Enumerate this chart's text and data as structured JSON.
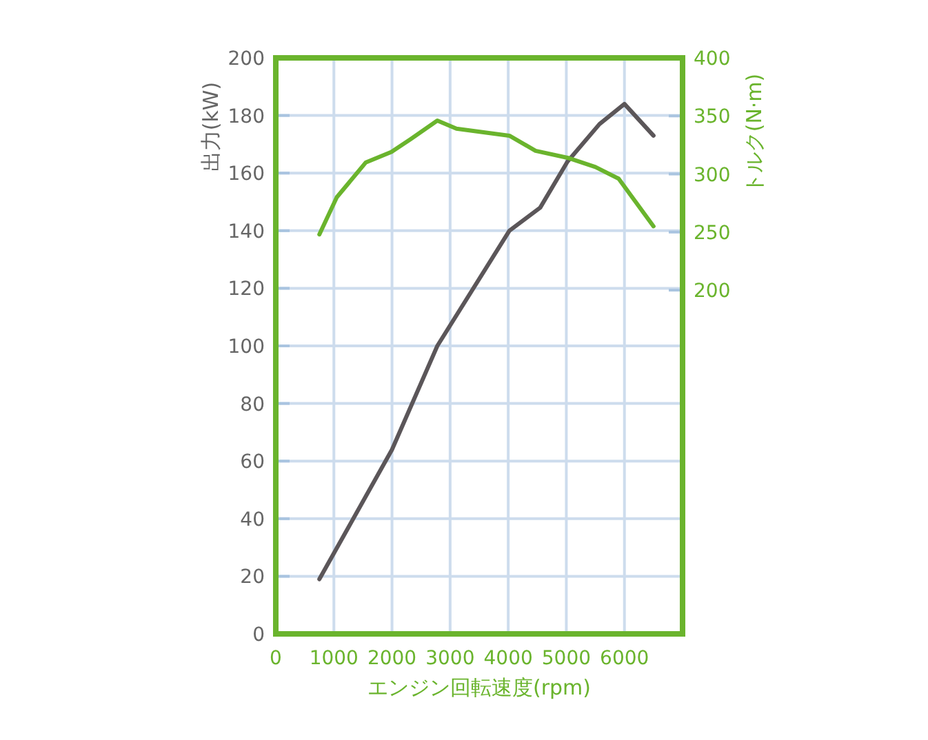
{
  "chart_data": {
    "type": "line",
    "xlabel": "エンジン回転速度(rpm)",
    "ylabel": "出力(kW)",
    "y2label": "トルク(N·m)",
    "xlim": [
      0,
      7000
    ],
    "xticks": [
      0,
      1000,
      2000,
      3000,
      4000,
      5000,
      6000
    ],
    "ylim": [
      0,
      200
    ],
    "yticks": [
      0,
      20,
      40,
      60,
      80,
      100,
      120,
      140,
      160,
      180,
      200
    ],
    "y2lim": [
      -96,
      400
    ],
    "y2ticks": [
      200,
      250,
      300,
      350,
      400
    ],
    "grid": true,
    "marker": "none",
    "line_style": "solid",
    "series": [
      {
        "color": "#5b5659",
        "x": [
          750,
          2000,
          2780,
          4020,
          4550,
          5020,
          5570,
          6000,
          6500
        ],
        "values": [
          19,
          64,
          100,
          140,
          148,
          164,
          177,
          184,
          173
        ]
      },
      {
        "color": "#6ab42d",
        "axis": "y2",
        "x": [
          750,
          1050,
          1550,
          1990,
          2320,
          2780,
          3110,
          4020,
          4470,
          5020,
          5500,
          5900,
          6500
        ],
        "values": [
          248,
          280,
          310,
          319,
          330,
          346,
          339,
          333,
          320,
          314,
          306,
          296,
          255
        ]
      }
    ]
  }
}
